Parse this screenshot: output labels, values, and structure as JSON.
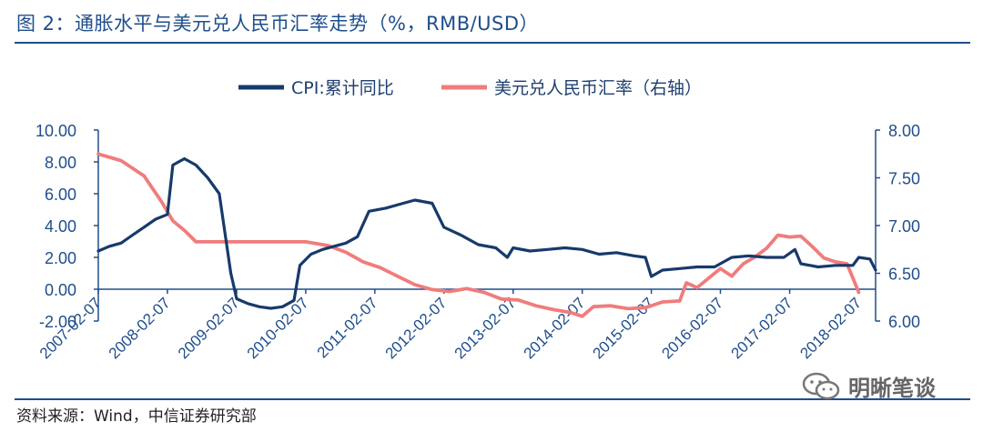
{
  "header": {
    "title": "图 2：通胀水平与美元兑人民币汇率走势（%，RMB/USD）"
  },
  "footer": {
    "source": "资料来源：Wind，中信证券研究部",
    "watermark": "明晰笔谈"
  },
  "chart_data": {
    "type": "line",
    "title": "",
    "legend_position": "top-center",
    "grid": false,
    "x_range": [
      "2007-02-07",
      "2018-05-07"
    ],
    "x_tick_labels": [
      "2007-02-07",
      "2008-02-07",
      "2009-02-07",
      "2010-02-07",
      "2011-02-07",
      "2012-02-07",
      "2013-02-07",
      "2014-02-07",
      "2015-02-07",
      "2016-02-07",
      "2017-02-07",
      "2018-02-07"
    ],
    "y_left": {
      "min": -2,
      "max": 10,
      "ticks": [
        "-2.00",
        "0.00",
        "2.00",
        "4.00",
        "6.00",
        "8.00",
        "10.00"
      ]
    },
    "y_right": {
      "min": 6,
      "max": 8,
      "ticks": [
        "6.00",
        "6.50",
        "7.00",
        "7.50",
        "8.00"
      ]
    },
    "colors": {
      "cpi": "#173a6b",
      "fx": "#f07c7c",
      "axis": "#1f4e8c",
      "tick_text": "#1f4e8c"
    },
    "series": [
      {
        "name": "CPI:累计同比",
        "axis": "left",
        "points": [
          [
            "2007-02-07",
            2.4
          ],
          [
            "2007-04-07",
            2.7
          ],
          [
            "2007-06-07",
            2.9
          ],
          [
            "2007-08-07",
            3.4
          ],
          [
            "2007-10-07",
            3.9
          ],
          [
            "2007-12-07",
            4.4
          ],
          [
            "2008-02-07",
            4.7
          ],
          [
            "2008-03-07",
            7.8
          ],
          [
            "2008-05-07",
            8.2
          ],
          [
            "2008-07-07",
            7.8
          ],
          [
            "2008-09-07",
            7.0
          ],
          [
            "2008-11-07",
            6.0
          ],
          [
            "2009-01-07",
            1.0
          ],
          [
            "2009-02-07",
            -0.6
          ],
          [
            "2009-04-07",
            -0.9
          ],
          [
            "2009-06-07",
            -1.1
          ],
          [
            "2009-08-07",
            -1.2
          ],
          [
            "2009-10-07",
            -1.1
          ],
          [
            "2009-12-07",
            -0.7
          ],
          [
            "2010-01-07",
            1.5
          ],
          [
            "2010-03-07",
            2.2
          ],
          [
            "2010-05-07",
            2.5
          ],
          [
            "2010-07-07",
            2.7
          ],
          [
            "2010-09-07",
            2.9
          ],
          [
            "2010-11-07",
            3.3
          ],
          [
            "2011-01-07",
            4.9
          ],
          [
            "2011-04-07",
            5.1
          ],
          [
            "2011-07-07",
            5.4
          ],
          [
            "2011-09-07",
            5.6
          ],
          [
            "2011-12-07",
            5.4
          ],
          [
            "2012-02-07",
            3.9
          ],
          [
            "2012-05-07",
            3.4
          ],
          [
            "2012-08-07",
            2.8
          ],
          [
            "2012-11-07",
            2.6
          ],
          [
            "2013-01-07",
            2.0
          ],
          [
            "2013-02-07",
            2.6
          ],
          [
            "2013-05-07",
            2.4
          ],
          [
            "2013-08-07",
            2.5
          ],
          [
            "2013-11-07",
            2.6
          ],
          [
            "2014-02-07",
            2.5
          ],
          [
            "2014-05-07",
            2.2
          ],
          [
            "2014-08-07",
            2.3
          ],
          [
            "2014-11-07",
            2.1
          ],
          [
            "2015-01-07",
            2.0
          ],
          [
            "2015-02-07",
            0.8
          ],
          [
            "2015-04-07",
            1.2
          ],
          [
            "2015-07-07",
            1.3
          ],
          [
            "2015-10-07",
            1.4
          ],
          [
            "2016-01-07",
            1.4
          ],
          [
            "2016-04-07",
            2.0
          ],
          [
            "2016-07-07",
            2.1
          ],
          [
            "2016-10-07",
            2.0
          ],
          [
            "2017-01-07",
            2.0
          ],
          [
            "2017-03-07",
            2.5
          ],
          [
            "2017-04-07",
            1.6
          ],
          [
            "2017-07-07",
            1.4
          ],
          [
            "2017-10-07",
            1.5
          ],
          [
            "2018-01-07",
            1.5
          ],
          [
            "2018-02-07",
            2.0
          ],
          [
            "2018-04-07",
            1.9
          ],
          [
            "2018-05-07",
            1.2
          ]
        ]
      },
      {
        "name": "美元兑人民币汇率（右轴）",
        "axis": "right",
        "points": [
          [
            "2007-02-07",
            7.75
          ],
          [
            "2007-06-07",
            7.68
          ],
          [
            "2007-10-07",
            7.52
          ],
          [
            "2008-01-07",
            7.25
          ],
          [
            "2008-03-07",
            7.05
          ],
          [
            "2008-05-07",
            6.95
          ],
          [
            "2008-07-07",
            6.83
          ],
          [
            "2008-09-07",
            6.83
          ],
          [
            "2009-02-07",
            6.83
          ],
          [
            "2009-08-07",
            6.83
          ],
          [
            "2010-02-07",
            6.83
          ],
          [
            "2010-06-07",
            6.79
          ],
          [
            "2010-09-07",
            6.72
          ],
          [
            "2010-12-07",
            6.62
          ],
          [
            "2011-03-07",
            6.56
          ],
          [
            "2011-06-07",
            6.47
          ],
          [
            "2011-09-07",
            6.38
          ],
          [
            "2011-12-07",
            6.33
          ],
          [
            "2012-03-07",
            6.31
          ],
          [
            "2012-06-07",
            6.34
          ],
          [
            "2012-09-07",
            6.3
          ],
          [
            "2012-12-07",
            6.23
          ],
          [
            "2013-03-07",
            6.22
          ],
          [
            "2013-06-07",
            6.16
          ],
          [
            "2013-09-07",
            6.12
          ],
          [
            "2013-12-07",
            6.09
          ],
          [
            "2014-02-07",
            6.05
          ],
          [
            "2014-04-07",
            6.15
          ],
          [
            "2014-07-07",
            6.16
          ],
          [
            "2014-10-07",
            6.13
          ],
          [
            "2015-01-07",
            6.14
          ],
          [
            "2015-04-07",
            6.2
          ],
          [
            "2015-07-07",
            6.21
          ],
          [
            "2015-08-11",
            6.4
          ],
          [
            "2015-10-07",
            6.35
          ],
          [
            "2015-12-07",
            6.45
          ],
          [
            "2016-02-07",
            6.55
          ],
          [
            "2016-04-07",
            6.47
          ],
          [
            "2016-06-07",
            6.6
          ],
          [
            "2016-08-07",
            6.67
          ],
          [
            "2016-10-07",
            6.76
          ],
          [
            "2016-12-07",
            6.9
          ],
          [
            "2017-02-07",
            6.88
          ],
          [
            "2017-04-07",
            6.89
          ],
          [
            "2017-06-07",
            6.78
          ],
          [
            "2017-08-07",
            6.66
          ],
          [
            "2017-10-07",
            6.62
          ],
          [
            "2017-12-07",
            6.6
          ],
          [
            "2018-02-07",
            6.3
          ]
        ]
      }
    ]
  }
}
